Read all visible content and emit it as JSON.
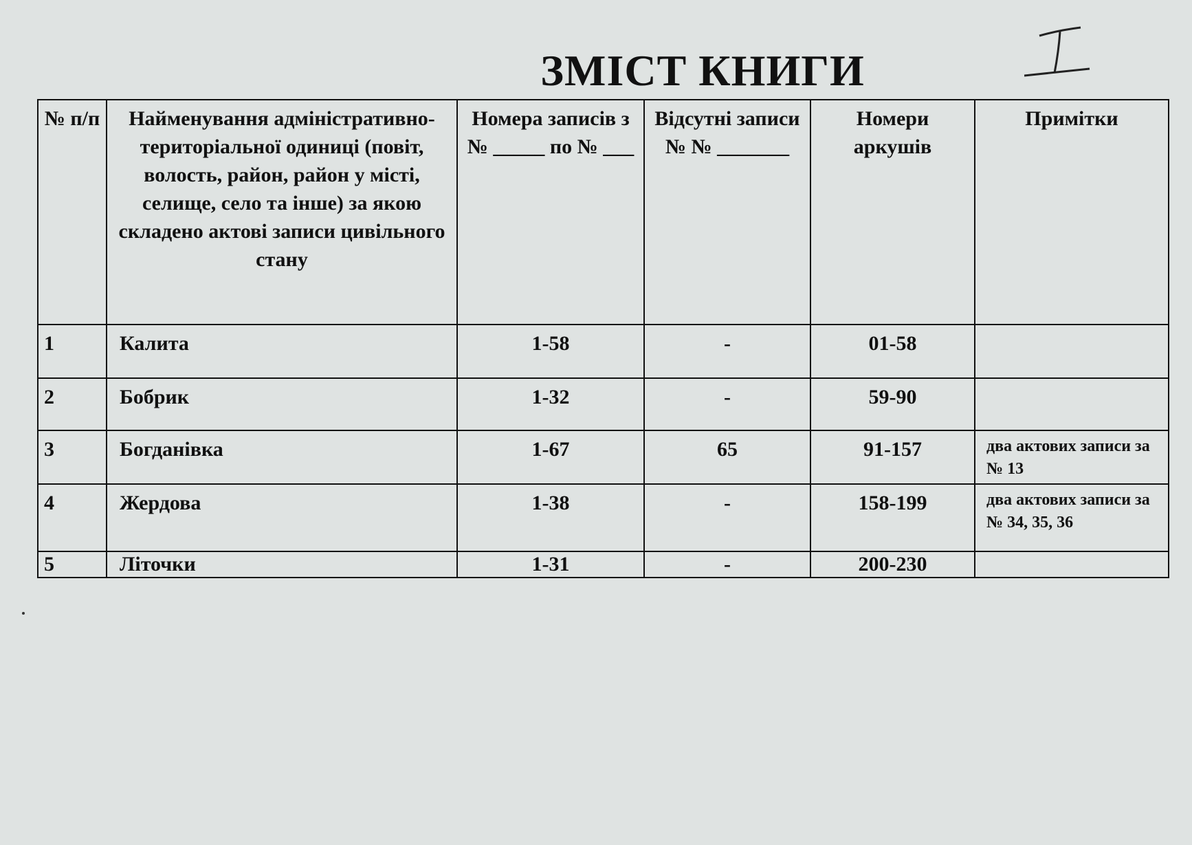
{
  "title": "ЗМІСТ КНИГИ",
  "handwritten_mark": "I",
  "table": {
    "headers": [
      "№ п/п",
      "Найменування адміністративно-територіальної одиниці (повіт, волость, район, район у місті, селище, село та інше) за якою складено актові записи цивільного стану",
      "Номера записів з № _____ по № ___",
      "Відсутні записи № № _______",
      "Номери аркушів",
      "Примітки"
    ],
    "rows": [
      {
        "num": "1",
        "name": "Калита",
        "records": "1-58",
        "missing": "-",
        "sheets": "01-58",
        "notes": ""
      },
      {
        "num": "2",
        "name": "Бобрик",
        "records": "1-32",
        "missing": "-",
        "sheets": "59-90",
        "notes": ""
      },
      {
        "num": "3",
        "name": "Богданівка",
        "records": "1-67",
        "missing": "65",
        "sheets": "91-157",
        "notes": "два актових записи за № 13"
      },
      {
        "num": "4",
        "name": "Жердова",
        "records": "1-38",
        "missing": "-",
        "sheets": "158-199",
        "notes": "два актових записи за № 34, 35, 36"
      },
      {
        "num": "5",
        "name": "Літочки",
        "records": "1-31",
        "missing": "-",
        "sheets": "200-230",
        "notes": ""
      }
    ]
  }
}
